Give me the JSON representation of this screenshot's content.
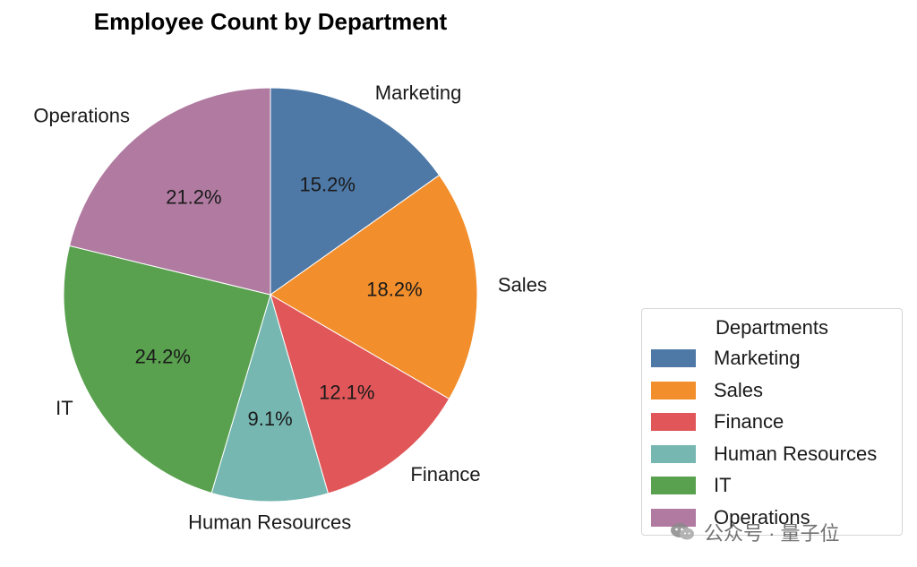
{
  "chart_data": {
    "type": "pie",
    "title": "Employee Count by Department",
    "categories": [
      "Marketing",
      "Sales",
      "Finance",
      "Human Resources",
      "IT",
      "Operations"
    ],
    "values": [
      15.2,
      18.2,
      12.1,
      9.1,
      24.2,
      21.2
    ],
    "percent_labels": [
      "15.2%",
      "18.2%",
      "12.1%",
      "9.1%",
      "24.2%",
      "21.2%"
    ],
    "colors": [
      "#4e79a7",
      "#f28e2b",
      "#e15759",
      "#76b7b2",
      "#59a14f",
      "#b07aa1"
    ],
    "start_angle": "90 degrees, clockwise",
    "legend": {
      "title": "Departments",
      "placement": "lower-right",
      "entries": [
        "Marketing",
        "Sales",
        "Finance",
        "Human Resources",
        "IT",
        "Operations"
      ]
    }
  },
  "watermark": {
    "text": "公众号 · 量子位",
    "icon": "wechat-icon"
  }
}
